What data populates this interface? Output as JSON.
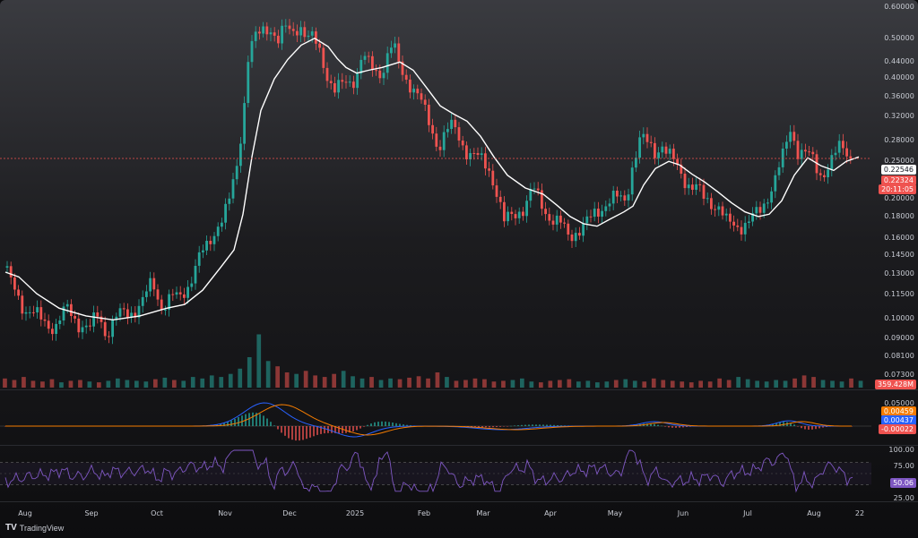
{
  "chart_data": {
    "type": "candlestick",
    "price_axis": {
      "scale": "log",
      "ticks": [
        "0.60000",
        "0.50000",
        "0.44000",
        "0.40000",
        "0.36000",
        "0.32000",
        "0.28000",
        "0.25000",
        "0.20000",
        "0.18000",
        "0.16000",
        "0.14500",
        "0.13000",
        "0.11500",
        "0.10000",
        "0.09000",
        "0.08100",
        "0.07300"
      ],
      "range": [
        0.07,
        0.6
      ]
    },
    "x_axis": {
      "labels": [
        "Aug",
        "Sep",
        "Oct",
        "Nov",
        "Dec",
        "2025",
        "Feb",
        "Mar",
        "Apr",
        "May",
        "Jun",
        "Jul",
        "Aug",
        "22"
      ]
    },
    "current_price": "0.22324",
    "countdown": "20:11:05",
    "ma_value": "0.22546",
    "volume_label": "359.428M",
    "price_path": [
      [
        0,
        0.135
      ],
      [
        12,
        0.118
      ],
      [
        28,
        0.104
      ],
      [
        45,
        0.098
      ],
      [
        62,
        0.095
      ],
      [
        75,
        0.103
      ],
      [
        88,
        0.097
      ],
      [
        100,
        0.093
      ],
      [
        110,
        0.101
      ],
      [
        118,
        0.092
      ],
      [
        130,
        0.099
      ],
      [
        145,
        0.102
      ],
      [
        160,
        0.108
      ],
      [
        170,
        0.118
      ],
      [
        180,
        0.106
      ],
      [
        192,
        0.11
      ],
      [
        200,
        0.108
      ],
      [
        210,
        0.118
      ],
      [
        220,
        0.132
      ],
      [
        232,
        0.142
      ],
      [
        242,
        0.16
      ],
      [
        255,
        0.175
      ],
      [
        265,
        0.215
      ],
      [
        272,
        0.29
      ],
      [
        278,
        0.4
      ],
      [
        286,
        0.41
      ],
      [
        294,
        0.425
      ],
      [
        302,
        0.44
      ],
      [
        310,
        0.41
      ],
      [
        318,
        0.43
      ],
      [
        326,
        0.42
      ],
      [
        334,
        0.45
      ],
      [
        342,
        0.415
      ],
      [
        350,
        0.405
      ],
      [
        358,
        0.38
      ],
      [
        366,
        0.34
      ],
      [
        374,
        0.315
      ],
      [
        382,
        0.322
      ],
      [
        390,
        0.33
      ],
      [
        398,
        0.345
      ],
      [
        404,
        0.38
      ],
      [
        410,
        0.36
      ],
      [
        418,
        0.345
      ],
      [
        426,
        0.35
      ],
      [
        432,
        0.38
      ],
      [
        438,
        0.4
      ],
      [
        444,
        0.36
      ],
      [
        450,
        0.34
      ],
      [
        458,
        0.33
      ],
      [
        466,
        0.31
      ],
      [
        474,
        0.28
      ],
      [
        482,
        0.255
      ],
      [
        490,
        0.24
      ],
      [
        498,
        0.258
      ],
      [
        506,
        0.26
      ],
      [
        514,
        0.245
      ],
      [
        522,
        0.232
      ],
      [
        530,
        0.225
      ],
      [
        538,
        0.218
      ],
      [
        546,
        0.212
      ],
      [
        554,
        0.19
      ],
      [
        562,
        0.16
      ],
      [
        570,
        0.165
      ],
      [
        578,
        0.172
      ],
      [
        586,
        0.176
      ],
      [
        594,
        0.19
      ],
      [
        602,
        0.18
      ],
      [
        610,
        0.17
      ],
      [
        618,
        0.163
      ],
      [
        626,
        0.158
      ],
      [
        634,
        0.15
      ],
      [
        642,
        0.155
      ],
      [
        650,
        0.158
      ],
      [
        658,
        0.162
      ],
      [
        666,
        0.17
      ],
      [
        674,
        0.178
      ],
      [
        682,
        0.182
      ],
      [
        690,
        0.18
      ],
      [
        698,
        0.18
      ],
      [
        706,
        0.22
      ],
      [
        714,
        0.245
      ],
      [
        722,
        0.24
      ],
      [
        730,
        0.232
      ],
      [
        738,
        0.242
      ],
      [
        746,
        0.225
      ],
      [
        754,
        0.215
      ],
      [
        762,
        0.205
      ],
      [
        770,
        0.195
      ],
      [
        778,
        0.19
      ],
      [
        786,
        0.18
      ],
      [
        794,
        0.18
      ],
      [
        802,
        0.175
      ],
      [
        810,
        0.16
      ],
      [
        818,
        0.158
      ],
      [
        826,
        0.16
      ],
      [
        834,
        0.162
      ],
      [
        842,
        0.165
      ],
      [
        850,
        0.172
      ],
      [
        858,
        0.19
      ],
      [
        866,
        0.205
      ],
      [
        874,
        0.225
      ],
      [
        882,
        0.26
      ],
      [
        890,
        0.235
      ],
      [
        898,
        0.23
      ],
      [
        906,
        0.22
      ],
      [
        914,
        0.205
      ],
      [
        922,
        0.215
      ],
      [
        930,
        0.225
      ],
      [
        938,
        0.235
      ],
      [
        946,
        0.23
      ],
      [
        952,
        0.223
      ]
    ],
    "ma_path": [
      [
        0,
        0.125
      ],
      [
        15,
        0.122
      ],
      [
        35,
        0.112
      ],
      [
        60,
        0.104
      ],
      [
        90,
        0.1
      ],
      [
        120,
        0.098
      ],
      [
        150,
        0.1
      ],
      [
        180,
        0.104
      ],
      [
        200,
        0.106
      ],
      [
        220,
        0.114
      ],
      [
        240,
        0.128
      ],
      [
        255,
        0.14
      ],
      [
        265,
        0.168
      ],
      [
        275,
        0.225
      ],
      [
        285,
        0.285
      ],
      [
        300,
        0.335
      ],
      [
        315,
        0.37
      ],
      [
        330,
        0.398
      ],
      [
        345,
        0.412
      ],
      [
        360,
        0.395
      ],
      [
        370,
        0.372
      ],
      [
        380,
        0.355
      ],
      [
        392,
        0.345
      ],
      [
        405,
        0.35
      ],
      [
        420,
        0.355
      ],
      [
        440,
        0.365
      ],
      [
        455,
        0.35
      ],
      [
        470,
        0.32
      ],
      [
        485,
        0.292
      ],
      [
        500,
        0.28
      ],
      [
        515,
        0.27
      ],
      [
        530,
        0.25
      ],
      [
        545,
        0.225
      ],
      [
        560,
        0.205
      ],
      [
        580,
        0.192
      ],
      [
        600,
        0.186
      ],
      [
        615,
        0.176
      ],
      [
        630,
        0.166
      ],
      [
        645,
        0.16
      ],
      [
        660,
        0.158
      ],
      [
        675,
        0.164
      ],
      [
        690,
        0.17
      ],
      [
        700,
        0.175
      ],
      [
        712,
        0.195
      ],
      [
        725,
        0.212
      ],
      [
        740,
        0.22
      ],
      [
        752,
        0.216
      ],
      [
        766,
        0.206
      ],
      [
        780,
        0.198
      ],
      [
        795,
        0.188
      ],
      [
        810,
        0.178
      ],
      [
        825,
        0.17
      ],
      [
        840,
        0.166
      ],
      [
        852,
        0.168
      ],
      [
        866,
        0.18
      ],
      [
        880,
        0.205
      ],
      [
        895,
        0.224
      ],
      [
        910,
        0.215
      ],
      [
        924,
        0.21
      ],
      [
        938,
        0.22
      ],
      [
        952,
        0.225
      ]
    ],
    "volume_series": [
      12,
      10,
      14,
      9,
      8,
      11,
      7,
      9,
      10,
      8,
      7,
      9,
      12,
      10,
      9,
      8,
      11,
      13,
      10,
      9,
      14,
      12,
      16,
      14,
      18,
      25,
      40,
      70,
      35,
      28,
      20,
      18,
      22,
      16,
      14,
      18,
      22,
      15,
      12,
      14,
      10,
      12,
      11,
      13,
      15,
      12,
      20,
      14,
      9,
      10,
      12,
      11,
      8,
      9,
      10,
      12,
      8,
      7,
      9,
      10,
      11,
      8,
      9,
      7,
      8,
      10,
      11,
      9,
      8,
      12,
      10,
      9,
      8,
      7,
      9,
      8,
      12,
      10,
      14,
      11,
      9,
      8,
      10,
      9,
      12,
      16,
      14,
      10,
      9,
      8,
      12,
      9
    ],
    "macd": {
      "ticks": [
        "0.05000"
      ],
      "values": [
        "0.00459",
        "0.00437",
        "-0.00022"
      ],
      "colors": [
        "#f57c00",
        "#2962ff",
        "#ef5350"
      ]
    },
    "rsi": {
      "ticks": [
        "100.00",
        "75.00",
        "25.00"
      ],
      "value": "50.06",
      "bands": [
        70,
        30
      ]
    }
  },
  "branding": {
    "name": "TradingView"
  },
  "colors": {
    "up": "#26a69a",
    "down": "#ef5350",
    "ma": "#ffffff",
    "rsi": "#7e57c2",
    "macd_fast": "#2962ff",
    "macd_slow": "#f57c00"
  }
}
